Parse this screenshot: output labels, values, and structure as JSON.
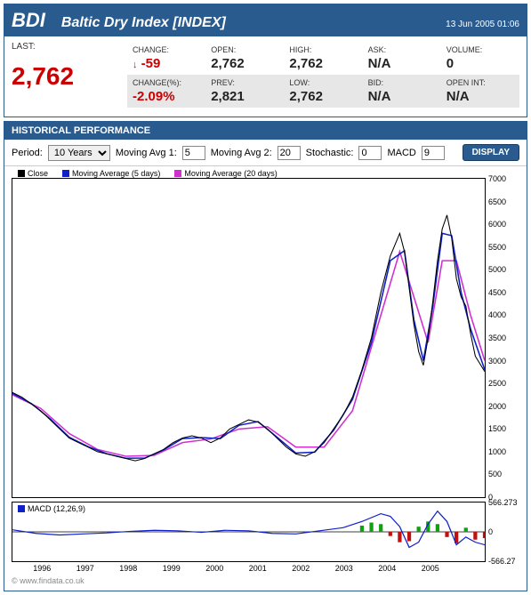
{
  "quote": {
    "ticker": "BDI",
    "name": "Baltic Dry Index [INDEX]",
    "timestamp": "13 Jun 2005 01:06",
    "last_label": "LAST:",
    "last_value": "2,762",
    "last_color": "#cc0000",
    "metrics": {
      "change_label": "CHANGE:",
      "change_value": "-59",
      "change_arrow": "↓",
      "open_label": "OPEN:",
      "open_value": "2,762",
      "high_label": "HIGH:",
      "high_value": "2,762",
      "ask_label": "ASK:",
      "ask_value": "N/A",
      "volume_label": "VOLUME:",
      "volume_value": "0",
      "changepct_label": "CHANGE(%):",
      "changepct_value": "-2.09%",
      "prev_label": "PREV:",
      "prev_value": "2,821",
      "low_label": "LOW:",
      "low_value": "2,762",
      "bid_label": "BID:",
      "bid_value": "N/A",
      "openint_label": "OPEN INT:",
      "openint_value": "N/A"
    }
  },
  "hist": {
    "header": "HISTORICAL PERFORMANCE",
    "period_label": "Period:",
    "period_value": "10 Years",
    "ma1_label": "Moving Avg 1:",
    "ma1_value": "5",
    "ma2_label": "Moving Avg 2:",
    "ma2_value": "20",
    "stoch_label": "Stochastic:",
    "stoch_value": "0",
    "macd_ctl_label": "MACD",
    "macd_ctl_value": "9",
    "display_btn": "DISPLAY",
    "legend": {
      "close": "Close",
      "ma5": "Moving Average (5 days)",
      "ma20": "Moving Average (20 days)",
      "macd": "MACD (12,26,9)"
    },
    "colors": {
      "close": "#000000",
      "ma5": "#1020c8",
      "ma20": "#d030d0",
      "macd_line": "#1020c8",
      "macd_hist_pos": "#10a010",
      "macd_hist_neg": "#c01010",
      "macd_zero": "#000000",
      "grid": "#ffffff",
      "background": "#ffffff"
    },
    "main_chart": {
      "ylim": [
        0,
        7000
      ],
      "ytick_step": 500,
      "xticks": [
        "1996",
        "1997",
        "1998",
        "1999",
        "2000",
        "2001",
        "2002",
        "2003",
        "2004",
        "2005"
      ],
      "series": [
        [
          0.0,
          2300
        ],
        [
          0.02,
          2200
        ],
        [
          0.04,
          2050
        ],
        [
          0.06,
          1900
        ],
        [
          0.08,
          1700
        ],
        [
          0.1,
          1500
        ],
        [
          0.12,
          1300
        ],
        [
          0.14,
          1200
        ],
        [
          0.16,
          1100
        ],
        [
          0.18,
          1000
        ],
        [
          0.2,
          950
        ],
        [
          0.22,
          900
        ],
        [
          0.24,
          850
        ],
        [
          0.26,
          800
        ],
        [
          0.28,
          850
        ],
        [
          0.3,
          950
        ],
        [
          0.32,
          1050
        ],
        [
          0.34,
          1200
        ],
        [
          0.36,
          1300
        ],
        [
          0.38,
          1350
        ],
        [
          0.4,
          1300
        ],
        [
          0.42,
          1200
        ],
        [
          0.44,
          1300
        ],
        [
          0.46,
          1500
        ],
        [
          0.48,
          1600
        ],
        [
          0.5,
          1700
        ],
        [
          0.52,
          1650
        ],
        [
          0.54,
          1500
        ],
        [
          0.56,
          1300
        ],
        [
          0.58,
          1100
        ],
        [
          0.6,
          950
        ],
        [
          0.62,
          900
        ],
        [
          0.64,
          1000
        ],
        [
          0.66,
          1200
        ],
        [
          0.68,
          1500
        ],
        [
          0.7,
          1800
        ],
        [
          0.72,
          2200
        ],
        [
          0.74,
          2800
        ],
        [
          0.76,
          3500
        ],
        [
          0.78,
          4500
        ],
        [
          0.8,
          5300
        ],
        [
          0.82,
          5800
        ],
        [
          0.83,
          5400
        ],
        [
          0.84,
          4600
        ],
        [
          0.85,
          3800
        ],
        [
          0.86,
          3200
        ],
        [
          0.87,
          2900
        ],
        [
          0.88,
          3500
        ],
        [
          0.89,
          4300
        ],
        [
          0.9,
          5200
        ],
        [
          0.91,
          5900
        ],
        [
          0.92,
          6200
        ],
        [
          0.93,
          5700
        ],
        [
          0.94,
          4800
        ],
        [
          0.95,
          4400
        ],
        [
          0.96,
          4200
        ],
        [
          0.97,
          3600
        ],
        [
          0.98,
          3100
        ],
        [
          1.0,
          2762
        ]
      ],
      "ma5": [
        [
          0.0,
          2280
        ],
        [
          0.04,
          2060
        ],
        [
          0.08,
          1720
        ],
        [
          0.12,
          1320
        ],
        [
          0.16,
          1110
        ],
        [
          0.2,
          955
        ],
        [
          0.24,
          855
        ],
        [
          0.28,
          860
        ],
        [
          0.32,
          1040
        ],
        [
          0.36,
          1290
        ],
        [
          0.4,
          1310
        ],
        [
          0.44,
          1290
        ],
        [
          0.48,
          1580
        ],
        [
          0.52,
          1660
        ],
        [
          0.56,
          1320
        ],
        [
          0.6,
          970
        ],
        [
          0.64,
          990
        ],
        [
          0.68,
          1470
        ],
        [
          0.72,
          2150
        ],
        [
          0.76,
          3400
        ],
        [
          0.8,
          5200
        ],
        [
          0.83,
          5420
        ],
        [
          0.85,
          3900
        ],
        [
          0.87,
          3000
        ],
        [
          0.89,
          4200
        ],
        [
          0.91,
          5800
        ],
        [
          0.93,
          5750
        ],
        [
          0.95,
          4500
        ],
        [
          0.97,
          3700
        ],
        [
          1.0,
          2800
        ]
      ],
      "ma20": [
        [
          0.0,
          2250
        ],
        [
          0.06,
          1950
        ],
        [
          0.12,
          1400
        ],
        [
          0.18,
          1050
        ],
        [
          0.24,
          900
        ],
        [
          0.3,
          920
        ],
        [
          0.36,
          1200
        ],
        [
          0.42,
          1280
        ],
        [
          0.48,
          1500
        ],
        [
          0.54,
          1550
        ],
        [
          0.6,
          1100
        ],
        [
          0.66,
          1100
        ],
        [
          0.72,
          1900
        ],
        [
          0.78,
          4000
        ],
        [
          0.82,
          5400
        ],
        [
          0.85,
          4400
        ],
        [
          0.88,
          3400
        ],
        [
          0.91,
          5200
        ],
        [
          0.94,
          5200
        ],
        [
          0.97,
          4000
        ],
        [
          1.0,
          3000
        ]
      ]
    },
    "macd_chart": {
      "ylim": [
        -566.27,
        566.273
      ],
      "yticks": [
        "566.273",
        "0",
        "-566.27"
      ],
      "line": [
        [
          0.0,
          40
        ],
        [
          0.05,
          -30
        ],
        [
          0.1,
          -60
        ],
        [
          0.15,
          -40
        ],
        [
          0.2,
          -20
        ],
        [
          0.25,
          10
        ],
        [
          0.3,
          30
        ],
        [
          0.35,
          20
        ],
        [
          0.4,
          -10
        ],
        [
          0.45,
          30
        ],
        [
          0.5,
          20
        ],
        [
          0.55,
          -30
        ],
        [
          0.6,
          -40
        ],
        [
          0.65,
          20
        ],
        [
          0.7,
          80
        ],
        [
          0.74,
          200
        ],
        [
          0.78,
          350
        ],
        [
          0.8,
          300
        ],
        [
          0.82,
          100
        ],
        [
          0.84,
          -300
        ],
        [
          0.86,
          -200
        ],
        [
          0.88,
          150
        ],
        [
          0.9,
          400
        ],
        [
          0.92,
          200
        ],
        [
          0.94,
          -250
        ],
        [
          0.96,
          -100
        ],
        [
          0.98,
          -200
        ],
        [
          1.0,
          -250
        ]
      ],
      "hist": [
        [
          0.74,
          120
        ],
        [
          0.76,
          180
        ],
        [
          0.78,
          150
        ],
        [
          0.8,
          -80
        ],
        [
          0.82,
          -200
        ],
        [
          0.84,
          -180
        ],
        [
          0.86,
          100
        ],
        [
          0.88,
          200
        ],
        [
          0.9,
          150
        ],
        [
          0.92,
          -100
        ],
        [
          0.94,
          -220
        ],
        [
          0.96,
          80
        ],
        [
          0.98,
          -150
        ],
        [
          1.0,
          -120
        ]
      ]
    },
    "source": "© www.findata.co.uk"
  }
}
